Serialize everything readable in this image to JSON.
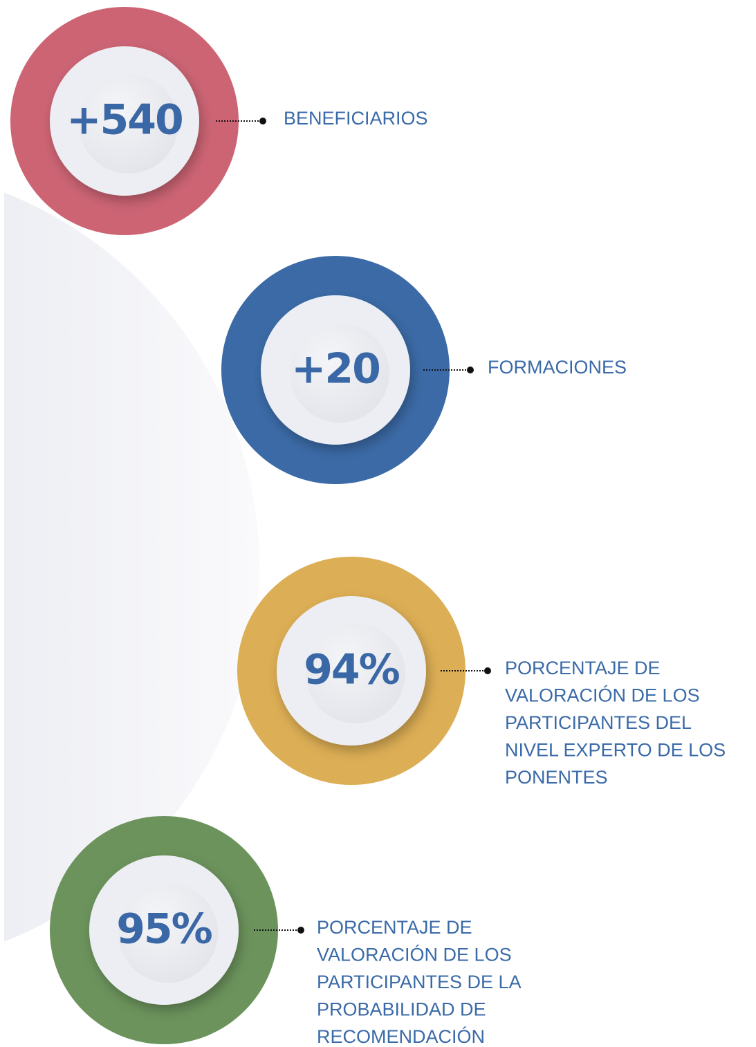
{
  "items": [
    {
      "value": "+540",
      "label": [
        "BENEFICIARIOS"
      ]
    },
    {
      "value": "+20",
      "label": [
        "FORMACIONES"
      ]
    },
    {
      "value": "94%",
      "label": [
        "PORCENTAJE DE",
        "VALORACIÓN DE LOS",
        "PARTICIPANTES DEL",
        "NIVEL EXPERTO DE LOS",
        "PONENTES"
      ]
    },
    {
      "value": "95%",
      "label": [
        "PORCENTAJE DE",
        "VALORACIÓN DE LOS",
        "PARTICIPANTES DE LA",
        "PROBABILIDAD DE",
        "RECOMENDACIÓN"
      ]
    }
  ]
}
